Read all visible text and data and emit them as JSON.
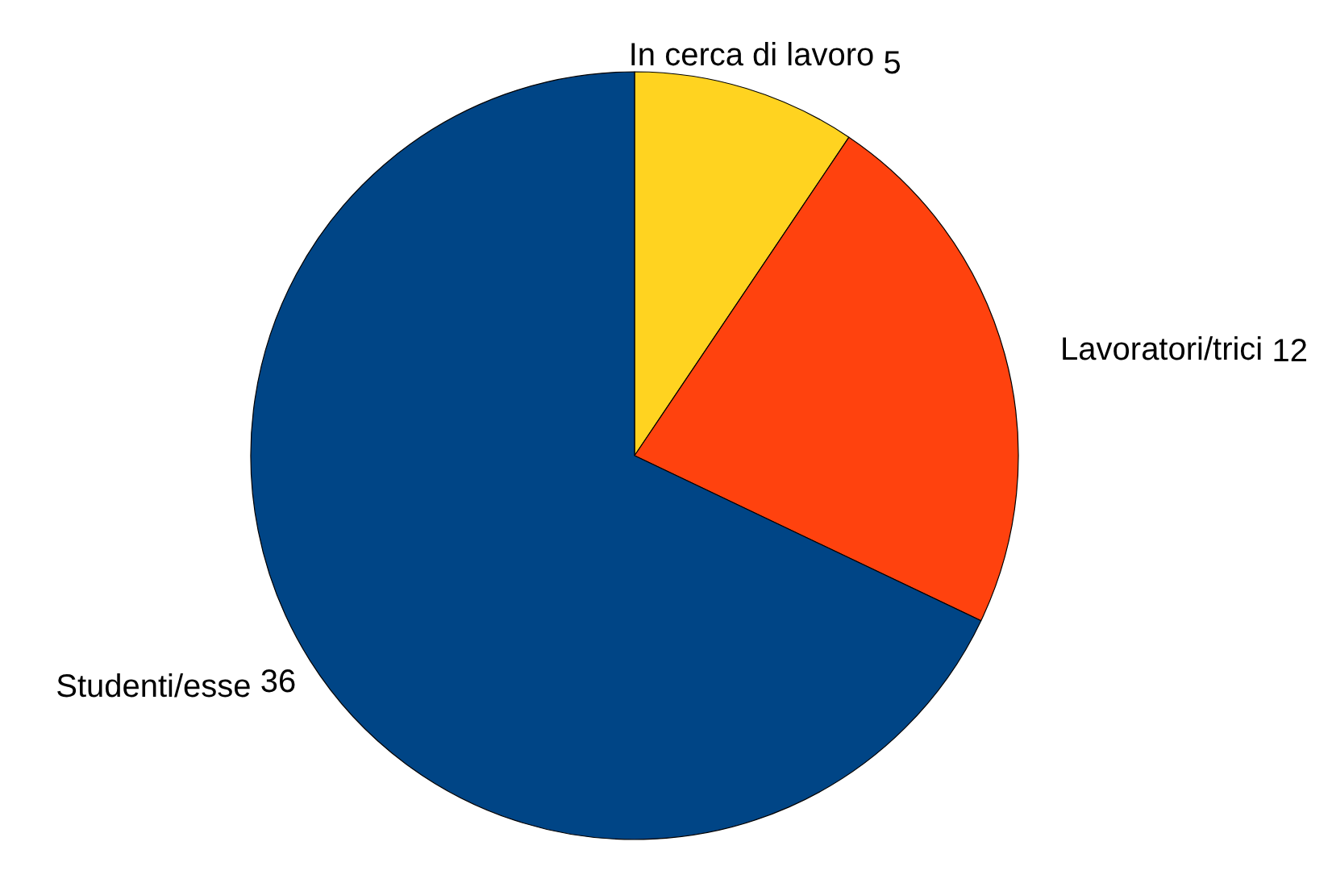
{
  "chart_data": {
    "type": "pie",
    "categories": [
      "In cerca di lavoro",
      "Lavoratori/trici",
      "Studenti/esse"
    ],
    "values": [
      5,
      12,
      36
    ],
    "colors": [
      "#ffd320",
      "#ff420e",
      "#004586"
    ],
    "data_labels": true,
    "legend": false
  }
}
